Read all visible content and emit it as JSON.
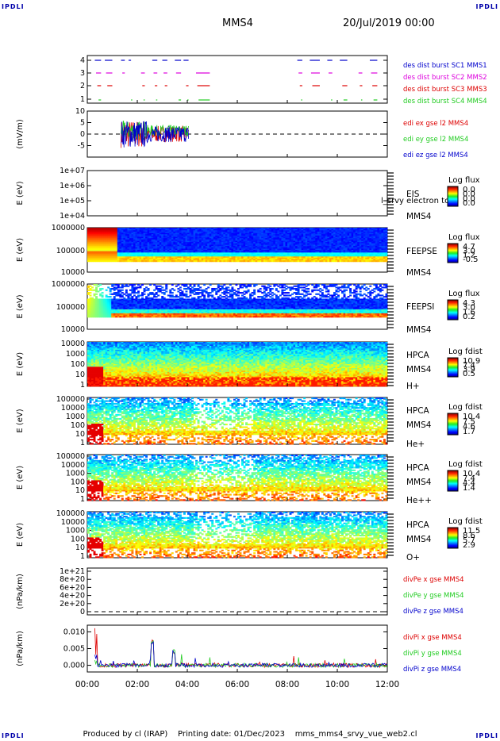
{
  "header": {
    "title": "MMS4",
    "date": "20/Jul/2019 00:00",
    "corner_tl": "IPDLI",
    "corner_tr": "IPDLI",
    "corner_bl": "IPDLI",
    "corner_br": "IPDLI"
  },
  "footer": {
    "text": "Produced by cl (IRAP)    Printing date: 01/Dec/2023    mms_mms4_srvy_vue_web2.cl"
  },
  "colors": {
    "red": "#dd0000",
    "green": "#22cc22",
    "blue": "#0000cc",
    "magenta": "#dd00dd"
  },
  "chart_data": [
    {
      "type": "line",
      "panel": "burst",
      "ylim": [
        0.5,
        4.5
      ],
      "yticks": [
        "1",
        "2",
        "3",
        "4"
      ],
      "series": [
        {
          "name": "des dist burst SC1 MMS1",
          "color": "#0000cc",
          "level": 4
        },
        {
          "name": "des dist burst SC2 MMS2",
          "color": "#dd00dd",
          "level": 3
        },
        {
          "name": "des dist burst SC3 MMS3",
          "color": "#dd0000",
          "level": 2
        },
        {
          "name": "des dist burst SC4 MMS4",
          "color": "#22cc22",
          "level": 1
        }
      ]
    },
    {
      "type": "line",
      "panel": "edi",
      "ylabel": "(mV/m)",
      "ylim": [
        -10,
        10
      ],
      "yticks": [
        "10",
        "5",
        "0",
        "-5"
      ],
      "series": [
        {
          "name": "edi ex gse l2 MMS4",
          "color": "#dd0000"
        },
        {
          "name": "edi ey gse l2 MMS4",
          "color": "#22cc22"
        },
        {
          "name": "edi ez gse l2 MMS4",
          "color": "#0000cc"
        }
      ]
    },
    {
      "type": "heatmap",
      "panel": "eis",
      "ylabel": "E (eV)",
      "yticks": [
        "1e+07",
        "1e+06",
        "1e+05",
        "1e+04"
      ],
      "right_labels": [
        "EIS",
        "MMS4"
      ],
      "overlay_text": "l_srvy electron to",
      "colorbar": {
        "title": "Log flux",
        "ticks": [
          "0.0",
          "0.0",
          "0.0",
          "0.0"
        ]
      }
    },
    {
      "type": "heatmap",
      "panel": "feepse",
      "ylabel": "E (eV)",
      "yticks": [
        "1000000",
        "100000",
        "10000"
      ],
      "right_labels": [
        "FEEPSE",
        "MMS4"
      ],
      "colorbar": {
        "title": "Log flux",
        "ticks": [
          "4.7",
          "3.0",
          "1.2",
          "-0.5"
        ]
      }
    },
    {
      "type": "heatmap",
      "panel": "feepsi",
      "ylabel": "E (eV)",
      "yticks": [
        "1000000",
        "100000",
        "10000"
      ],
      "right_labels": [
        "FEEPSI",
        "MMS4"
      ],
      "colorbar": {
        "title": "Log flux",
        "ticks": [
          "4.3",
          "3.0",
          "1.6",
          "0.2"
        ]
      }
    },
    {
      "type": "heatmap",
      "panel": "hpca-h",
      "ylabel": "E (eV)",
      "yticks": [
        "10000",
        "1000",
        "100",
        "10",
        "1"
      ],
      "right_labels": [
        "HPCA",
        "MMS4",
        "H+"
      ],
      "colorbar": {
        "title": "Log fdist",
        "ticks": [
          "10.9",
          "7.4",
          "3.9",
          "0.5"
        ]
      }
    },
    {
      "type": "heatmap",
      "panel": "hpca-he",
      "ylabel": "E (eV)",
      "yticks": [
        "100000",
        "10000",
        "1000",
        "100",
        "10",
        "1"
      ],
      "right_labels": [
        "HPCA",
        "MMS4",
        "He+"
      ],
      "colorbar": {
        "title": "Log fdist",
        "ticks": [
          "10.4",
          "7.5",
          "4.6",
          "1.7"
        ]
      }
    },
    {
      "type": "heatmap",
      "panel": "hpca-hepp",
      "ylabel": "E (eV)",
      "yticks": [
        "100000",
        "10000",
        "1000",
        "100",
        "10",
        "1"
      ],
      "right_labels": [
        "HPCA",
        "MMS4",
        "He++"
      ],
      "colorbar": {
        "title": "Log fdist",
        "ticks": [
          "10.4",
          "7.4",
          "4.4",
          "1.4"
        ]
      }
    },
    {
      "type": "heatmap",
      "panel": "hpca-o",
      "ylabel": "E (eV)",
      "yticks": [
        "100000",
        "10000",
        "1000",
        "100",
        "10",
        "1"
      ],
      "right_labels": [
        "HPCA",
        "MMS4",
        "O+"
      ],
      "colorbar": {
        "title": "Log fdist",
        "ticks": [
          "11.5",
          "8.6",
          "5.7",
          "2.9"
        ]
      }
    },
    {
      "type": "line",
      "panel": "divpe",
      "ylabel": "(nPa/km)",
      "yticks": [
        "1e+21",
        "8e+20",
        "6e+20",
        "4e+20",
        "2e+20",
        "0"
      ],
      "series": [
        {
          "name": "divPe x gse MMS4",
          "color": "#dd0000"
        },
        {
          "name": "divPe y gse MMS4",
          "color": "#22cc22"
        },
        {
          "name": "divPe z gse MMS4",
          "color": "#0000cc"
        }
      ]
    },
    {
      "type": "line",
      "panel": "divpi",
      "ylabel": "(nPa/km)",
      "ylim": [
        -0.002,
        0.012
      ],
      "yticks": [
        "0.010",
        "0.005",
        "0.000"
      ],
      "series": [
        {
          "name": "divPi x gse MMS4",
          "color": "#dd0000"
        },
        {
          "name": "divPi y gse MMS4",
          "color": "#22cc22"
        },
        {
          "name": "divPi z gse MMS4",
          "color": "#0000cc"
        }
      ]
    }
  ],
  "xaxis": {
    "ticks": [
      "00:00",
      "02:00",
      "04:00",
      "06:00",
      "08:00",
      "10:00",
      "12:00"
    ],
    "range_hours": [
      0,
      12
    ]
  }
}
